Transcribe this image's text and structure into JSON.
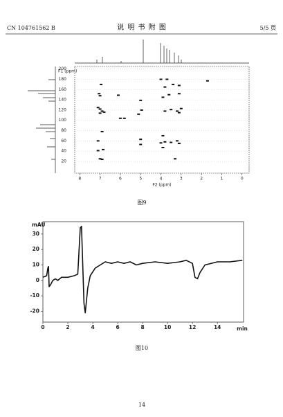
{
  "header": {
    "left": "CN 104761562 B",
    "center": "说 明 书 附 图",
    "right": "5/5 页"
  },
  "figure9": {
    "type": "scatter",
    "caption": "图9",
    "ylabel": "F1 (ppm)",
    "xlabel": "F2 (ppm)",
    "xlim": [
      8.25,
      -0.35
    ],
    "xticks": [
      8,
      7,
      6,
      5,
      4,
      3,
      2,
      1,
      0
    ],
    "ylim": [
      -3,
      205
    ],
    "yticks": [
      20,
      40,
      60,
      80,
      100,
      120,
      140,
      160,
      180,
      200
    ],
    "color": "#111111",
    "grid": true,
    "x": [
      6.9,
      7.0,
      7.1,
      6.85,
      7.1,
      6.9,
      7.0,
      6.9,
      7.0,
      7.1,
      7.0,
      7.05,
      6.95,
      6.0,
      5.8,
      6.1,
      5.0,
      5.0,
      5.1,
      4.95,
      5.0,
      3.9,
      4.0,
      3.8,
      3.5,
      3.2,
      3.1,
      3.9,
      3.1,
      3.2,
      3.8,
      3.5,
      3.0,
      3.9,
      3.6,
      3.1,
      3.8,
      3.4,
      3.1,
      4.0,
      1.7,
      3.3,
      6.8,
      3.7
    ],
    "y": [
      24,
      25,
      41,
      43,
      60,
      78,
      114,
      118,
      122,
      125,
      148,
      152,
      170,
      104,
      104,
      149,
      53,
      63,
      112,
      120,
      139,
      47,
      56,
      58,
      57,
      60,
      55,
      70,
      115,
      118,
      118,
      121,
      123,
      145,
      150,
      152,
      165,
      170,
      168,
      180,
      177,
      25,
      116,
      180
    ]
  },
  "figure10": {
    "type": "line",
    "caption": "图10",
    "ylabel": "mAU",
    "xlabel": "min",
    "xlim": [
      0,
      16.1
    ],
    "xticks": [
      0,
      2,
      4,
      6,
      8,
      10,
      12,
      14
    ],
    "ylim": [
      -27,
      38
    ],
    "yticks": [
      -20,
      -10,
      0,
      10,
      20,
      30
    ],
    "color": "#111111",
    "x": [
      0,
      0.3,
      0.4,
      0.45,
      0.5,
      0.6,
      0.8,
      1,
      1.2,
      1.5,
      2,
      2.5,
      2.8,
      3.0,
      3.1,
      3.2,
      3.3,
      3.4,
      3.6,
      3.8,
      4.2,
      4.6,
      5,
      5.5,
      6,
      6.5,
      7,
      7.5,
      8,
      9,
      10,
      11,
      11.5,
      12,
      12.2,
      12.4,
      12.6,
      13,
      14,
      15,
      16
    ],
    "values": [
      2,
      3,
      8,
      9,
      -4,
      -3,
      0,
      1,
      0,
      2,
      2,
      3,
      4,
      34,
      35,
      10,
      -15,
      -21,
      -5,
      3,
      8,
      10,
      12,
      11,
      12,
      11,
      12,
      10,
      11,
      12,
      11,
      12,
      13,
      11,
      2,
      1,
      5,
      10,
      12,
      12,
      13
    ]
  },
  "footer": {
    "page": "14"
  }
}
